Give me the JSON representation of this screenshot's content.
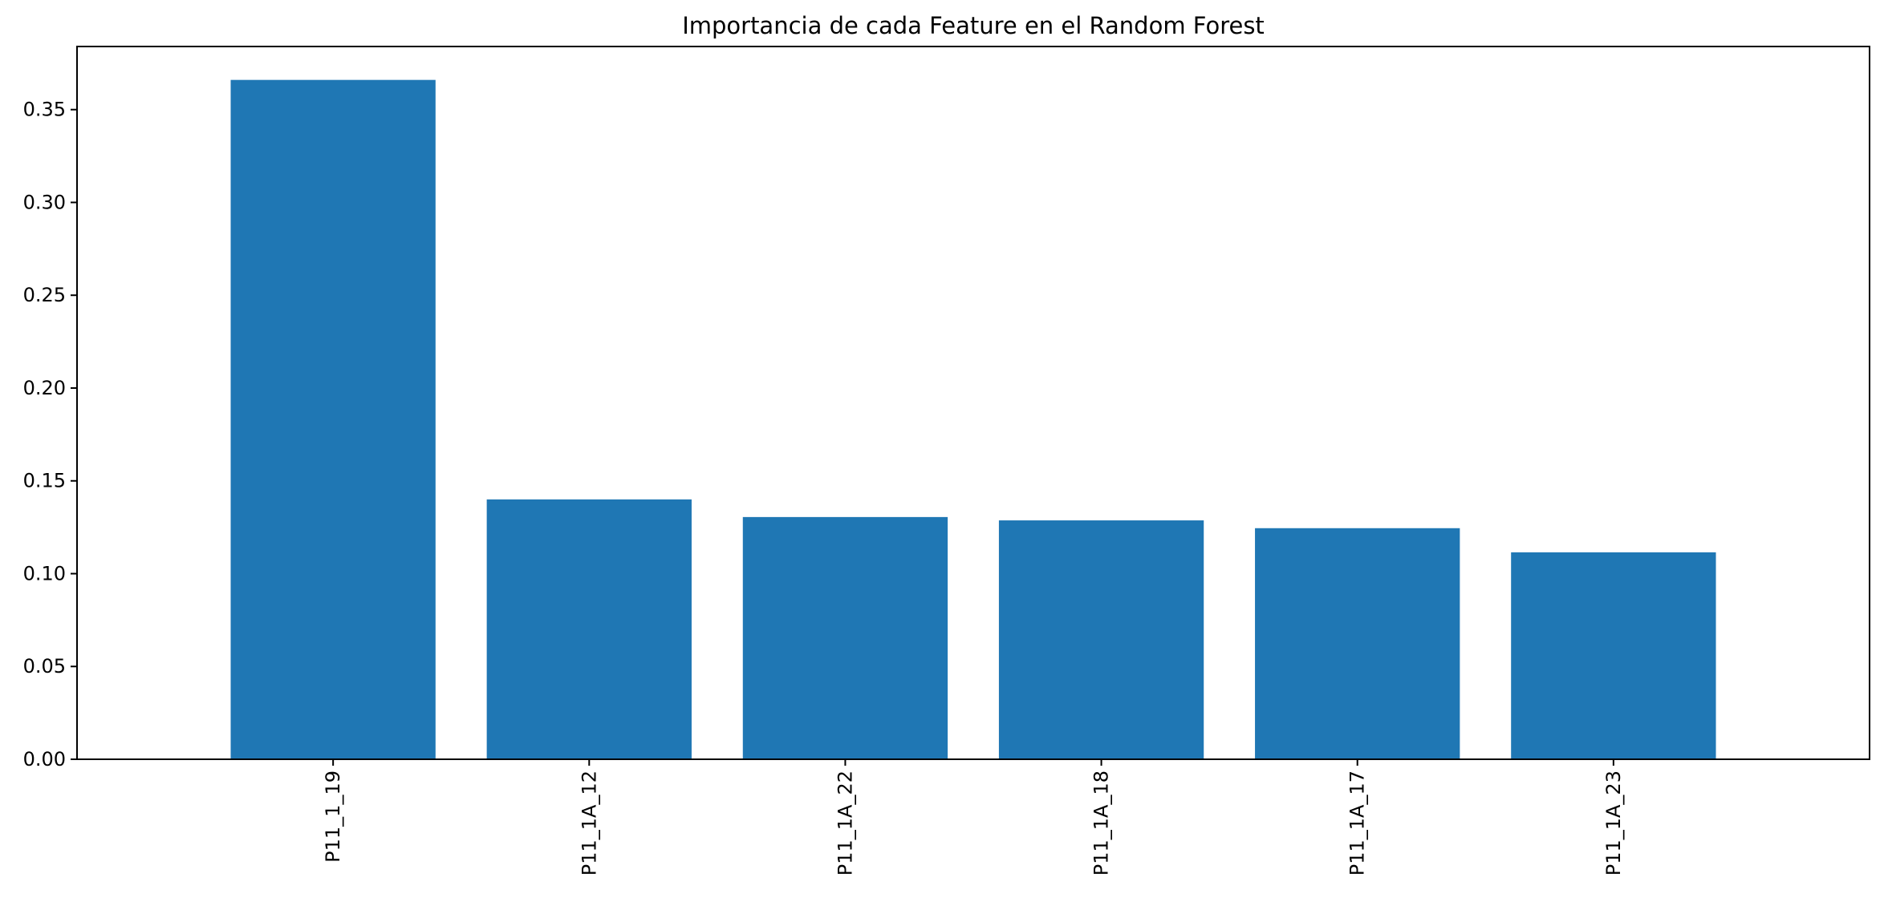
{
  "chart_data": {
    "type": "bar",
    "title": "Importancia de cada Feature en el Random Forest",
    "xlabel": "",
    "ylabel": "",
    "categories": [
      "P11_1_19",
      "P11_1A_12",
      "P11_1A_22",
      "P11_1A_18",
      "P11_1A_17",
      "P11_1A_23"
    ],
    "values": [
      0.366,
      0.14,
      0.1305,
      0.1287,
      0.1245,
      0.1115
    ],
    "ylim": [
      0,
      0.384
    ],
    "yticks": [
      "0.00",
      "0.05",
      "0.10",
      "0.15",
      "0.20",
      "0.25",
      "0.30",
      "0.35"
    ],
    "xtick_rotation": "vertical",
    "grid": false,
    "legend": "none",
    "colors": {
      "bar": "#1f77b4",
      "axes": "#000000",
      "background": "#ffffff"
    }
  }
}
